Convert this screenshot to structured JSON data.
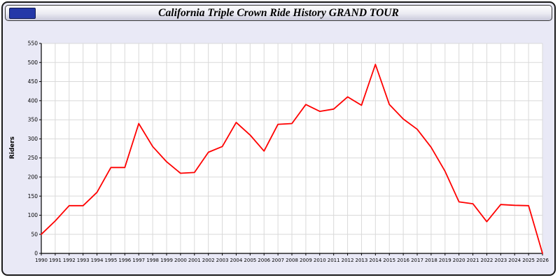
{
  "window": {
    "title": "California Triple Crown Ride History GRAND TOUR"
  },
  "colors": {
    "line": "#ff0000",
    "grid": "#d9d9d9",
    "plot_bg": "#ffffff",
    "axis": "#000000",
    "window_bg": "#e9e9f6",
    "titlebar_icon": "#2438a8"
  },
  "chart_data": {
    "type": "line",
    "title": "California Triple Crown Ride History GRAND TOUR",
    "xlabel": "",
    "ylabel": "Riders",
    "ylim": [
      0,
      550
    ],
    "y_tick_step": 50,
    "grid": true,
    "legend_position": "none",
    "line_color": "#ff0000",
    "categories": [
      "1990",
      "1991",
      "1992",
      "1993",
      "1994",
      "1995",
      "1996",
      "1997",
      "1998",
      "1999",
      "2000",
      "2001",
      "2002",
      "2003",
      "2004",
      "2005",
      "2006",
      "2007",
      "2008",
      "2009",
      "2010",
      "2011",
      "2012",
      "2013",
      "2014",
      "2015",
      "2016",
      "2017",
      "2018",
      "2019",
      "2020",
      "2021",
      "2022",
      "2023",
      "2024",
      "2025",
      "2026"
    ],
    "values": [
      50,
      85,
      125,
      125,
      160,
      225,
      225,
      340,
      280,
      240,
      210,
      212,
      265,
      280,
      343,
      310,
      268,
      338,
      340,
      390,
      372,
      378,
      410,
      388,
      495,
      390,
      352,
      325,
      278,
      215,
      135,
      130,
      83,
      128,
      126,
      125,
      0
    ]
  }
}
